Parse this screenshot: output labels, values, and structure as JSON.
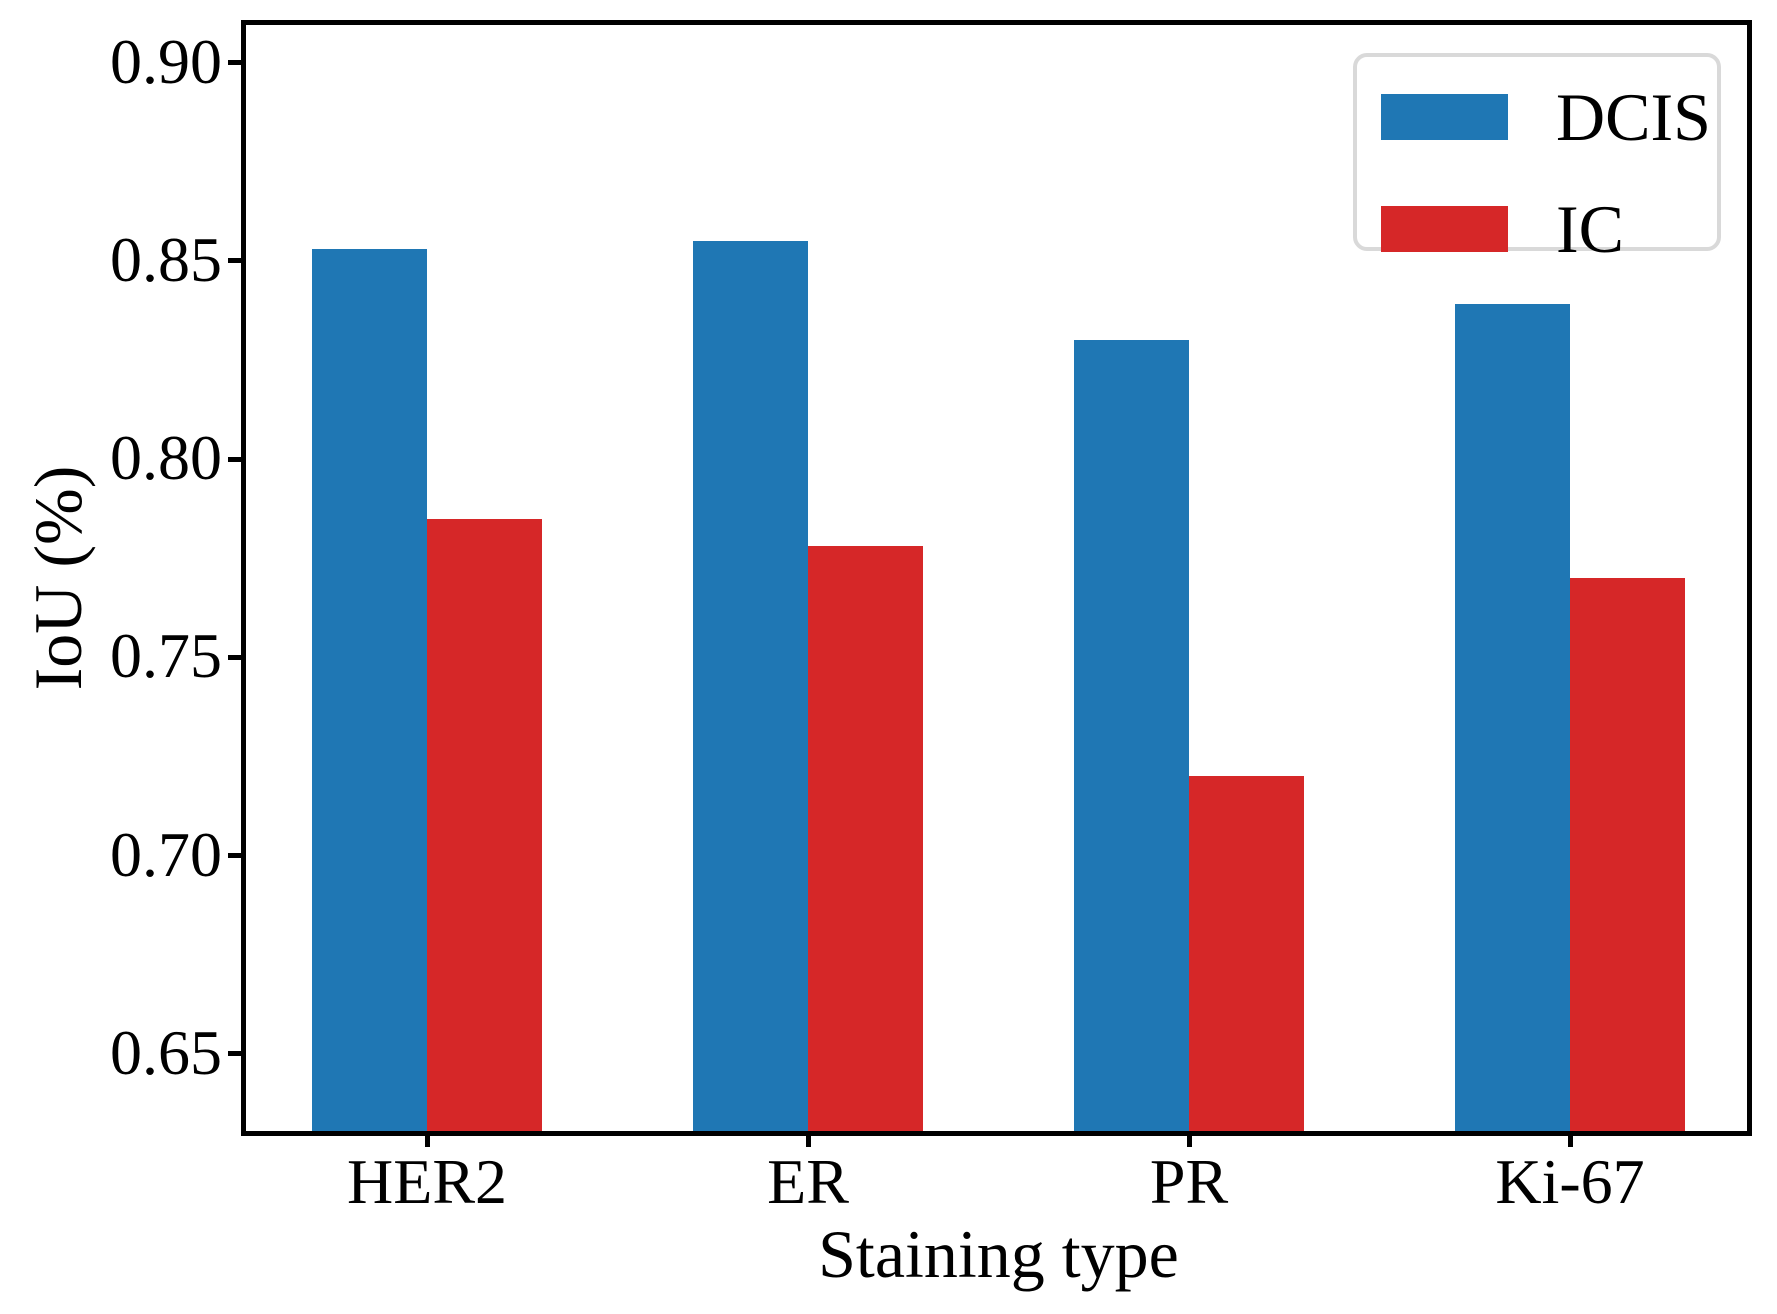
{
  "chart_data": {
    "type": "bar",
    "categories": [
      "HER2",
      "ER",
      "PR",
      "Ki-67"
    ],
    "series": [
      {
        "name": "DCIS",
        "color": "#1f77b4",
        "values": [
          0.853,
          0.855,
          0.83,
          0.839
        ]
      },
      {
        "name": "IC",
        "color": "#d62728",
        "values": [
          0.785,
          0.778,
          0.72,
          0.77
        ]
      }
    ],
    "title": "",
    "xlabel": "Staining type",
    "ylabel": "IoU (%)",
    "ylim": [
      0.63,
      0.91
    ],
    "yticks": [
      0.65,
      0.7,
      0.75,
      0.8,
      0.85,
      0.9
    ],
    "ytick_decimals": 2,
    "grid": false,
    "legend_position": "upper right",
    "axis_color": "#000000",
    "legend_border_color": "#d9d9d9"
  }
}
